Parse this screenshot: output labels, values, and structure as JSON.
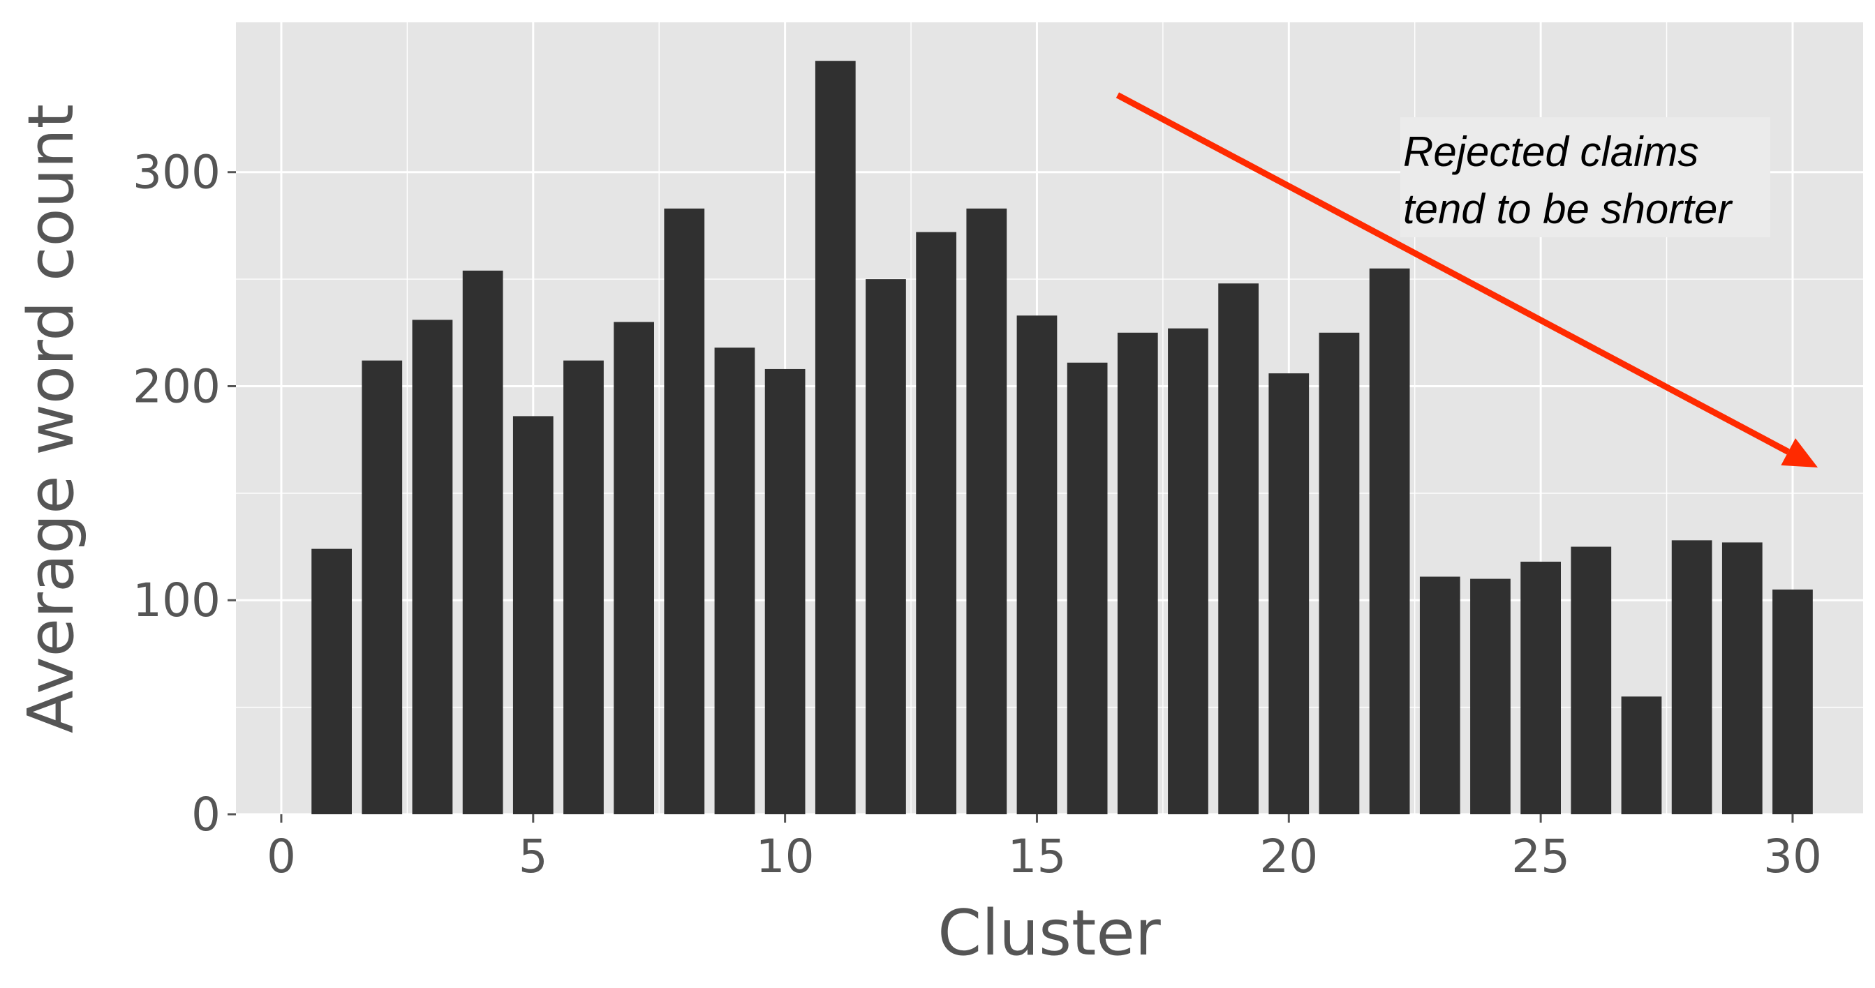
{
  "chart_data": {
    "type": "bar",
    "title": "",
    "xlabel": "Cluster",
    "ylabel": "Average word count",
    "x": [
      1,
      2,
      3,
      4,
      5,
      6,
      7,
      8,
      9,
      10,
      11,
      12,
      13,
      14,
      15,
      16,
      17,
      18,
      19,
      20,
      21,
      22,
      23,
      24,
      25,
      26,
      27,
      28,
      29,
      30
    ],
    "values": [
      124,
      212,
      231,
      254,
      186,
      212,
      230,
      283,
      218,
      208,
      352,
      250,
      272,
      283,
      233,
      211,
      225,
      227,
      248,
      206,
      225,
      255,
      111,
      110,
      118,
      125,
      55,
      128,
      127,
      105
    ],
    "xlim": [
      -0.9,
      31.4
    ],
    "ylim": [
      0,
      370
    ],
    "xticks": [
      0,
      5,
      10,
      15,
      20,
      25,
      30
    ],
    "yticks": [
      0,
      100,
      200,
      300
    ],
    "grid": true,
    "colors": {
      "panel": "#e5e5e5",
      "grid": "#ffffff",
      "bar": "#303030",
      "arrow": "#ff2a00",
      "text": "#555555"
    },
    "annotation": {
      "lines": [
        "Rejected claims",
        "tend to be shorter"
      ],
      "arrow_from": [
        16.6,
        336
      ],
      "arrow_to": [
        30.5,
        162
      ]
    }
  }
}
